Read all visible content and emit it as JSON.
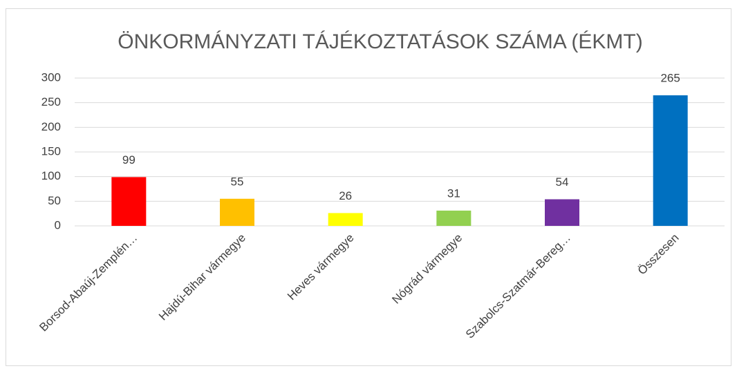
{
  "chart_data": {
    "type": "bar",
    "title": "ÖNKORMÁNYZATI TÁJÉKOZTATÁSOK SZÁMA (ÉKMT)",
    "categories": [
      "Borsod-Abaúj-Zemplén…",
      "Hajdú-Bihar vármegye",
      "Heves vármegye",
      "Nógrád vármegye",
      "Szabolcs-Szatmár-Bereg…",
      "Összesen"
    ],
    "values": [
      99,
      55,
      26,
      31,
      54,
      265
    ],
    "colors": [
      "#ff0000",
      "#ffc000",
      "#ffff00",
      "#92d050",
      "#7030a0",
      "#0070c0"
    ],
    "ylim": [
      0,
      300
    ],
    "yticks": [
      0,
      50,
      100,
      150,
      200,
      250,
      300
    ],
    "grid": true,
    "data_labels": true
  }
}
